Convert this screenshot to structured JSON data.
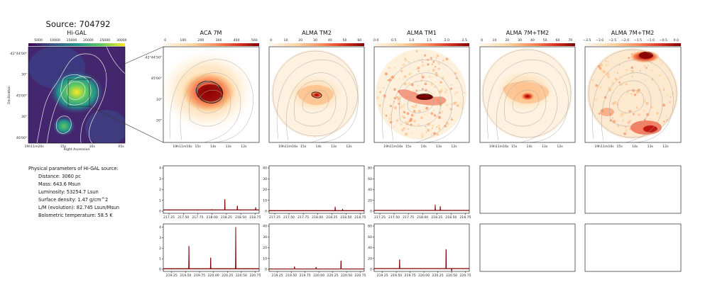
{
  "source_title": "Source: 704792",
  "physical": {
    "heading": "Physical parameters of Hi-GAL source:",
    "lines": [
      "Distance: 3060 pc",
      "Mass: 643.6 Msun",
      "Luminosity: 53254.7 Lsun",
      "Surface density: 1.47 g/cm^2",
      "L/M (evolution): 82.745 Lsun/Msun",
      "Bolometric temperature: 58.5 K"
    ]
  },
  "colors": {
    "viridis": [
      "#440154",
      "#3b528b",
      "#21918c",
      "#5ec962",
      "#fde725"
    ],
    "ylorrd": [
      "#fff7ec",
      "#fdd49e",
      "#fc8d59",
      "#d7301f",
      "#7f0000"
    ],
    "spectrum_line": "#7f0000",
    "contour": "#9a9a9a"
  },
  "chart_data": [
    {
      "type": "heatmap",
      "title": "Hi-GAL",
      "colormap": "viridis",
      "colorbar_ticks": [
        "5000",
        "10000",
        "15000",
        "20000",
        "25000",
        "30000"
      ],
      "xlabel": "Right Ascension",
      "ylabel": "Declination",
      "x_ticks": [
        "19h11m20s",
        "15s",
        "10s",
        "05s"
      ],
      "y_ticks": [
        "-42°44'00\"",
        "30\"",
        "45'00\"",
        "30\"",
        "46'00\""
      ]
    },
    {
      "type": "heatmap",
      "title": "ACA 7M",
      "colormap": "YlOrRd",
      "colorbar_ticks": [
        "0",
        "100",
        "200",
        "300",
        "400",
        "500"
      ],
      "x_ticks": [
        "19h11m16s",
        "15s",
        "14s",
        "13s",
        "12s"
      ],
      "y_ticks": [
        "-42°44'50\"",
        "45'00\"",
        "10\"",
        "20\""
      ]
    },
    {
      "type": "heatmap",
      "title": "ALMA TM2",
      "colormap": "YlOrRd",
      "colorbar_ticks": [
        "0",
        "10",
        "20",
        "30",
        "40",
        "50",
        "60"
      ],
      "x_ticks": [
        "19h11m16s",
        "15s",
        "14s",
        "13s",
        "12s"
      ]
    },
    {
      "type": "heatmap",
      "title": "ALMA TM1",
      "colormap": "YlOrRd",
      "colorbar_ticks": [
        "0.0",
        "0.5",
        "1.0",
        "1.5",
        "2.0",
        "2.5"
      ],
      "x_ticks": [
        "19h11m16s",
        "15s",
        "14s",
        "13s",
        "12s"
      ]
    },
    {
      "type": "heatmap",
      "title": "ALMA 7M+TM2",
      "colormap": "YlOrRd",
      "colorbar_ticks": [
        "0",
        "10",
        "20",
        "30",
        "40",
        "50",
        "60",
        "70"
      ],
      "x_ticks": [
        "19h11m16s",
        "15s",
        "14s",
        "13s",
        "12s"
      ]
    },
    {
      "type": "heatmap",
      "title": "ALMA 7M+TM2",
      "colormap": "YlOrRd",
      "colorbar_ticks": [
        "−3.5",
        "−3.0",
        "−2.5",
        "−2.0",
        "−1.5",
        "−1.0",
        "−0.5",
        "0.0"
      ],
      "x_ticks": [
        "19h11m16s",
        "15s",
        "14s",
        "13s",
        "12s"
      ]
    },
    {
      "type": "line",
      "row": 1,
      "x": [
        217.15,
        217.25,
        217.5,
        217.75,
        218.0,
        218.222,
        218.25,
        218.44,
        218.5,
        218.76,
        218.8
      ],
      "x_ticks": [
        "217.25",
        "217.50",
        "217.75",
        "218.00",
        "218.25",
        "218.50",
        "218.75"
      ],
      "y": [
        0.12,
        0.1,
        0.12,
        0.1,
        0.15,
        1.1,
        0.12,
        0.5,
        0.1,
        0.35,
        0.12
      ],
      "y_ticks": [
        "0",
        "1",
        "2",
        "3",
        "4"
      ],
      "ylim": [
        0,
        4
      ]
    },
    {
      "type": "line",
      "row": 1,
      "x": [
        217.15,
        217.25,
        217.5,
        217.75,
        218.0,
        218.25,
        218.31,
        218.44,
        218.5,
        218.75,
        218.8
      ],
      "x_ticks": [
        "217.25",
        "217.50",
        "217.75",
        "218.00",
        "218.25",
        "218.50",
        "218.75"
      ],
      "y": [
        0.5,
        0.3,
        0.4,
        0.3,
        0.4,
        0.3,
        4,
        2,
        0.3,
        0.4,
        0.3
      ],
      "y_ticks": [
        "0",
        "10",
        "20",
        "30",
        "40"
      ],
      "ylim": [
        0,
        40
      ]
    },
    {
      "type": "line",
      "row": 1,
      "x": [
        217.15,
        217.25,
        217.5,
        217.75,
        218.0,
        218.222,
        218.25,
        218.31,
        218.5,
        218.75,
        218.8
      ],
      "x_ticks": [
        "217.25",
        "217.50",
        "217.75",
        "218.00",
        "218.25",
        "218.50",
        "218.75"
      ],
      "y": [
        1.5,
        1.2,
        1.4,
        1.3,
        1.4,
        12,
        1.3,
        9,
        1.3,
        1.2,
        1.4
      ],
      "y_ticks": [
        "0",
        "20",
        "40",
        "60",
        "80"
      ],
      "ylim": [
        0,
        80
      ]
    },
    {
      "type": "line",
      "row": 2,
      "x": [
        219.1,
        219.25,
        219.56,
        219.75,
        219.95,
        220.0,
        220.25,
        220.4,
        220.5,
        220.75,
        220.8
      ],
      "x_ticks": [
        "219.25",
        "219.50",
        "219.75",
        "220.00",
        "220.25",
        "220.50",
        "220.75"
      ],
      "y": [
        0.05,
        0.05,
        2.2,
        0.05,
        1.1,
        0.05,
        0.05,
        4.0,
        0.05,
        0.05,
        0.05
      ],
      "y_ticks": [
        "0",
        "1",
        "2",
        "3",
        "4"
      ],
      "ylim": [
        0,
        4.1
      ]
    },
    {
      "type": "line",
      "row": 2,
      "x": [
        219.1,
        219.25,
        219.56,
        219.75,
        219.95,
        220.0,
        220.25,
        220.4,
        220.5,
        220.75,
        220.8
      ],
      "x_ticks": [
        "219.25",
        "219.50",
        "219.75",
        "220.00",
        "220.25",
        "220.50",
        "220.75"
      ],
      "y": [
        0.3,
        0.3,
        2.5,
        0.3,
        2,
        0.3,
        0.3,
        8,
        0.3,
        0.3,
        0.3
      ],
      "y_ticks": [
        "0",
        "10",
        "20",
        "30",
        "40"
      ],
      "ylim": [
        0,
        40
      ]
    },
    {
      "type": "line",
      "row": 2,
      "x": [
        219.1,
        219.25,
        219.56,
        219.75,
        219.95,
        220.0,
        220.25,
        220.4,
        220.5,
        220.75,
        220.8
      ],
      "x_ticks": [
        "219.25",
        "219.50",
        "219.75",
        "220.00",
        "220.25",
        "220.50",
        "220.75"
      ],
      "y": [
        1.3,
        1.2,
        18,
        1.3,
        1.5,
        1.2,
        1.4,
        37,
        -3,
        1.3,
        1.2
      ],
      "y_ticks": [
        "0",
        "20",
        "40",
        "60",
        "80"
      ],
      "ylim": [
        0,
        80
      ]
    },
    {
      "type": "line",
      "row": 1,
      "empty": true
    },
    {
      "type": "line",
      "row": 1,
      "empty": true
    },
    {
      "type": "line",
      "row": 2,
      "empty": true
    },
    {
      "type": "line",
      "row": 2,
      "empty": true
    }
  ]
}
